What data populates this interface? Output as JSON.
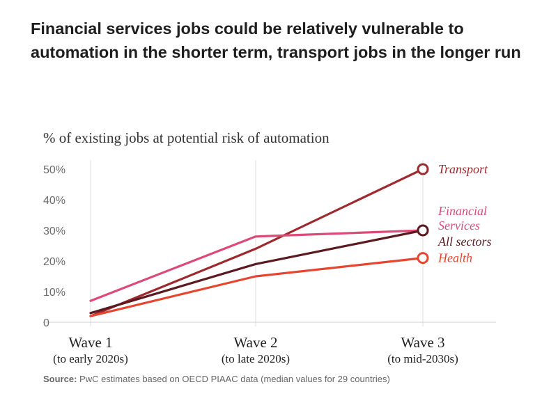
{
  "title": "Financial services jobs could be relatively vulnerable to automation in the shorter term, transport jobs in the longer run",
  "source": {
    "prefix": "Source:",
    "text": " PwC estimates based on OECD PIAAC data (median values for 29 countries)"
  },
  "chart_data": {
    "type": "line",
    "title": "% of existing jobs at potential risk of automation",
    "ylim": [
      0,
      50
    ],
    "yticks": [
      {
        "value": 0,
        "label": "0"
      },
      {
        "value": 10,
        "label": "10%"
      },
      {
        "value": 20,
        "label": "20%"
      },
      {
        "value": 30,
        "label": "30%"
      },
      {
        "value": 40,
        "label": "40%"
      },
      {
        "value": 50,
        "label": "50%"
      }
    ],
    "categories": [
      {
        "label": "Wave 1",
        "sub": "(to early 2020s)"
      },
      {
        "label": "Wave 2",
        "sub": "(to late 2020s)"
      },
      {
        "label": "Wave 3",
        "sub": "(to mid-2030s)"
      }
    ],
    "grid": "vertical",
    "series": [
      {
        "name": "Transport",
        "label_lines": [
          "Transport"
        ],
        "color": "#9e2a2f",
        "values": [
          2,
          24,
          50
        ]
      },
      {
        "name": "Financial Services",
        "label_lines": [
          "Financial",
          "Services"
        ],
        "color": "#dc4a78",
        "values": [
          7,
          28,
          30
        ]
      },
      {
        "name": "All sectors",
        "label_lines": [
          "All sectors"
        ],
        "color": "#5a1a1f",
        "values": [
          3,
          19,
          30
        ]
      },
      {
        "name": "Health",
        "label_lines": [
          "Health"
        ],
        "color": "#e6452f",
        "values": [
          2,
          15,
          21
        ]
      }
    ]
  }
}
